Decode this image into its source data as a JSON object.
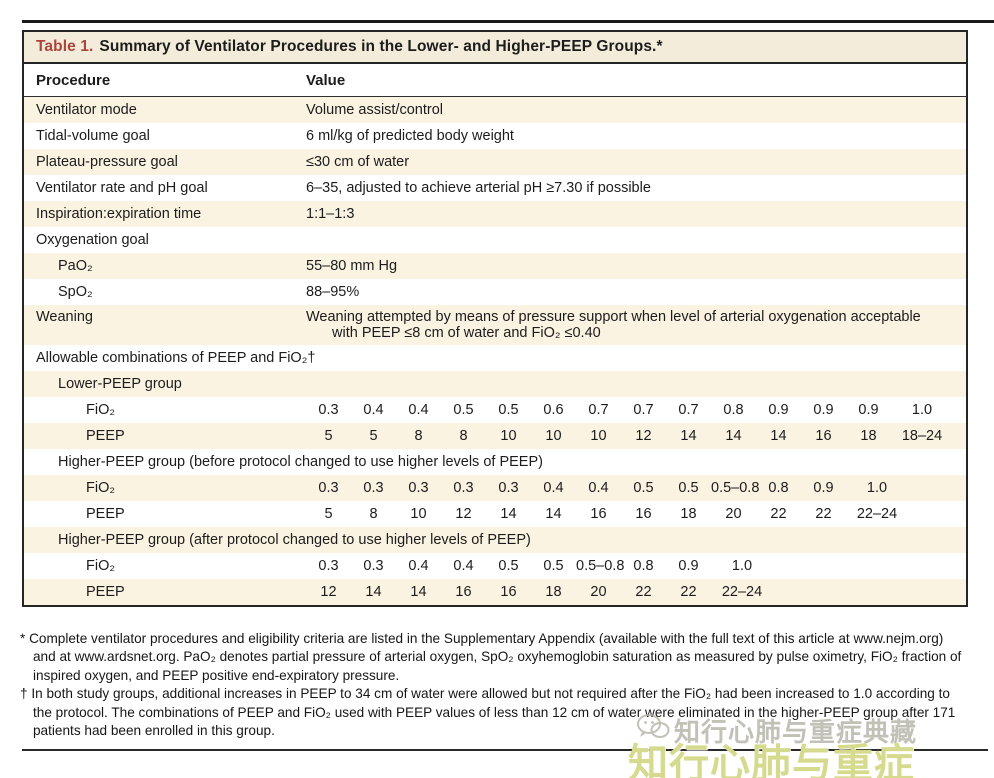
{
  "table": {
    "title": {
      "label": "Table 1.",
      "text": "Summary of Ventilator Procedures in the Lower- and Higher-PEEP Groups.*"
    },
    "header": {
      "procedure": "Procedure",
      "value": "Value"
    },
    "rows": [
      {
        "procedure": "Ventilator mode",
        "value": "Volume assist/control"
      },
      {
        "procedure": "Tidal-volume goal",
        "value": "6 ml/kg of predicted body weight"
      },
      {
        "procedure": "Plateau-pressure goal",
        "value": "≤30 cm of water"
      },
      {
        "procedure": "Ventilator rate and pH goal",
        "value": "6–35, adjusted to achieve arterial pH ≥7.30 if possible"
      },
      {
        "procedure": "Inspiration:expiration time",
        "value": "1:1–1:3"
      },
      {
        "procedure": "Oxygenation goal",
        "value": ""
      },
      {
        "procedure": "PaO₂",
        "value": "55–80 mm Hg"
      },
      {
        "procedure": "SpO₂",
        "value": "88–95%"
      },
      {
        "procedure": "Weaning",
        "value": "Weaning attempted by means of pressure support when level of arterial oxygenation acceptable",
        "value2": "with PEEP ≤8 cm of water and FiO₂ ≤0.40"
      }
    ],
    "combo": {
      "header": "Allowable combinations of PEEP and FiO₂†",
      "row_labels": {
        "fio2": "FiO₂",
        "peep": "PEEP"
      },
      "groups": [
        {
          "name": "Lower-PEEP group",
          "fio2": [
            "0.3",
            "0.4",
            "0.4",
            "0.5",
            "0.5",
            "0.6",
            "0.7",
            "0.7",
            "0.7",
            "0.8",
            "0.9",
            "0.9",
            "0.9",
            "1.0"
          ],
          "peep": [
            "5",
            "5",
            "8",
            "8",
            "10",
            "10",
            "10",
            "12",
            "14",
            "14",
            "14",
            "16",
            "18",
            "18–24"
          ]
        },
        {
          "name": "Higher-PEEP group (before protocol changed to use higher levels of PEEP)",
          "fio2": [
            "0.3",
            "0.3",
            "0.3",
            "0.3",
            "0.3",
            "0.4",
            "0.4",
            "0.5",
            "0.5",
            "0.5–0.8",
            "0.8",
            "0.9",
            "1.0"
          ],
          "peep": [
            "5",
            "8",
            "10",
            "12",
            "14",
            "14",
            "16",
            "16",
            "18",
            "20",
            "22",
            "22",
            "22–24"
          ]
        },
        {
          "name": "Higher-PEEP group (after protocol changed to use higher levels of PEEP)",
          "fio2": [
            "0.3",
            "0.3",
            "0.4",
            "0.4",
            "0.5",
            "0.5",
            "0.5–0.8",
            "0.8",
            "0.9",
            "1.0"
          ],
          "peep": [
            "12",
            "14",
            "14",
            "16",
            "16",
            "18",
            "20",
            "22",
            "22",
            "22–24"
          ]
        }
      ]
    }
  },
  "footnotes": [
    {
      "marker": "*",
      "text": "Complete ventilator procedures and eligibility criteria are listed in the Supplementary Appendix (available with the full text of this article at www.nejm.org) and at www.ardsnet.org. PaO₂ denotes partial pressure of arterial oxygen, SpO₂ oxyhemoglobin saturation as measured by pulse oximetry, FiO₂ fraction of inspired oxygen, and PEEP positive end-expiratory pressure."
    },
    {
      "marker": "†",
      "text": "In both study groups, additional increases in PEEP to 34 cm of water were allowed but not required after the FiO₂ had been increased to 1.0 according to the protocol. The combinations of PEEP and FiO₂ used with PEEP values of less than 12 cm of water were eliminated in the higher-PEEP group after 171 patients had been enrolled in this group."
    }
  ],
  "watermarks": {
    "small_gray": "知行心肺与重症典藏",
    "large_green": "知行心肺与重症"
  },
  "colors": {
    "accent_red": "#ad443a",
    "row_shade": "#faf3e2",
    "title_bar": "#f4ecda",
    "watermark_green": "#d6da8d"
  }
}
